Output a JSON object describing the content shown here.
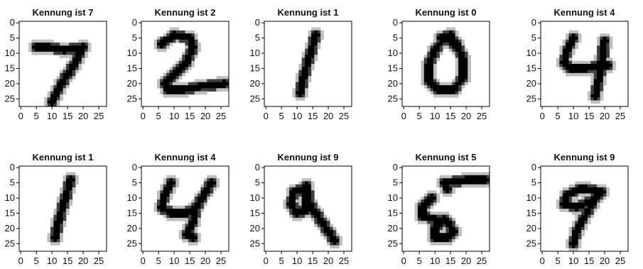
{
  "chart_data": {
    "type": "heatmap",
    "image_size": [
      28,
      28
    ],
    "colormap": "gray_r",
    "xlim": [
      0,
      27
    ],
    "ylim": [
      27,
      0
    ],
    "x_ticks": [
      "0",
      "5",
      "10",
      "15",
      "20",
      "25"
    ],
    "y_ticks": [
      "0",
      "5",
      "10",
      "15",
      "20",
      "25"
    ],
    "panels": [
      {
        "title": "Kennung ist 7",
        "label": 7,
        "strokes": [
          [
            [
              5,
              8
            ],
            [
              9,
              8
            ],
            [
              14,
              9
            ],
            [
              20,
              8
            ]
          ],
          [
            [
              20,
              8
            ],
            [
              17,
              14
            ],
            [
              13,
              20
            ],
            [
              10,
              26
            ]
          ]
        ]
      },
      {
        "title": "Kennung ist 2",
        "label": 2,
        "strokes": [
          [
            [
              6,
              7
            ],
            [
              10,
              4
            ],
            [
              15,
              5
            ],
            [
              16,
              8
            ],
            [
              14,
              13
            ],
            [
              10,
              17
            ],
            [
              7,
              20
            ],
            [
              8,
              22
            ],
            [
              13,
              22
            ],
            [
              18,
              21
            ],
            [
              26,
              20
            ]
          ]
        ]
      },
      {
        "title": "Kennung ist 1",
        "label": 1,
        "strokes": [
          [
            [
              16,
              4
            ],
            [
              14,
              11
            ],
            [
              12,
              18
            ],
            [
              11,
              23
            ]
          ]
        ]
      },
      {
        "title": "Kennung ist 0",
        "label": 0,
        "strokes": [
          [
            [
              13,
              5
            ],
            [
              10,
              9
            ],
            [
              8,
              14
            ],
            [
              8,
              19
            ],
            [
              11,
              22
            ],
            [
              16,
              22
            ],
            [
              19,
              18
            ],
            [
              19,
              12
            ],
            [
              17,
              7
            ],
            [
              13,
              5
            ]
          ],
          [
            [
              12,
              5
            ],
            [
              15,
              4
            ],
            [
              16,
              7
            ]
          ]
        ]
      },
      {
        "title": "Kennung ist 4",
        "label": 4,
        "strokes": [
          [
            [
              10,
              5
            ],
            [
              8,
              9
            ],
            [
              7,
              13
            ],
            [
              9,
              15
            ],
            [
              14,
              15
            ],
            [
              21,
              14
            ]
          ],
          [
            [
              20,
              6
            ],
            [
              19,
              13
            ],
            [
              18,
              19
            ],
            [
              17,
              24
            ]
          ]
        ]
      },
      {
        "title": "Kennung ist 1",
        "label": 1,
        "strokes": [
          [
            [
              16,
              4
            ],
            [
              14,
              11
            ],
            [
              12,
              18
            ],
            [
              11,
              23
            ]
          ]
        ]
      },
      {
        "title": "Kennung ist 4",
        "label": 4,
        "strokes": [
          [
            [
              9,
              5
            ],
            [
              7,
              9
            ],
            [
              6,
              13
            ],
            [
              9,
              15
            ],
            [
              14,
              15
            ],
            [
              17,
              13
            ],
            [
              22,
              5
            ]
          ],
          [
            [
              17,
              13
            ],
            [
              16,
              18
            ],
            [
              14,
              22
            ],
            [
              16,
              23
            ]
          ]
        ]
      },
      {
        "title": "Kennung ist 9",
        "label": 9,
        "strokes": [
          [
            [
              12,
              7
            ],
            [
              9,
              8
            ],
            [
              8,
              12
            ],
            [
              10,
              15
            ],
            [
              13,
              14
            ],
            [
              13,
              9
            ],
            [
              12,
              7
            ]
          ],
          [
            [
              12,
              7
            ],
            [
              13,
              6
            ],
            [
              14,
              12
            ],
            [
              18,
              18
            ],
            [
              22,
              24
            ]
          ]
        ]
      },
      {
        "title": "Kennung ist 5",
        "label": 5,
        "strokes": [
          [
            [
              26,
              4
            ],
            [
              20,
              4
            ],
            [
              14,
              5
            ]
          ],
          [
            [
              9,
              10
            ],
            [
              6,
              13
            ],
            [
              6,
              16
            ],
            [
              10,
              17
            ],
            [
              14,
              18
            ],
            [
              16,
              21
            ],
            [
              14,
              23
            ],
            [
              10,
              23
            ],
            [
              10,
              20
            ],
            [
              13,
              17
            ]
          ],
          [
            [
              13,
              5
            ],
            [
              14,
              7
            ]
          ]
        ]
      },
      {
        "title": "Kennung ist 9",
        "label": 9,
        "strokes": [
          [
            [
              12,
              7
            ],
            [
              8,
              9
            ],
            [
              7,
              12
            ],
            [
              11,
              13
            ],
            [
              16,
              11
            ],
            [
              19,
              8
            ],
            [
              14,
              7
            ],
            [
              12,
              7
            ]
          ],
          [
            [
              18,
              8
            ],
            [
              16,
              12
            ],
            [
              13,
              17
            ],
            [
              11,
              21
            ],
            [
              10,
              25
            ]
          ]
        ]
      }
    ]
  }
}
